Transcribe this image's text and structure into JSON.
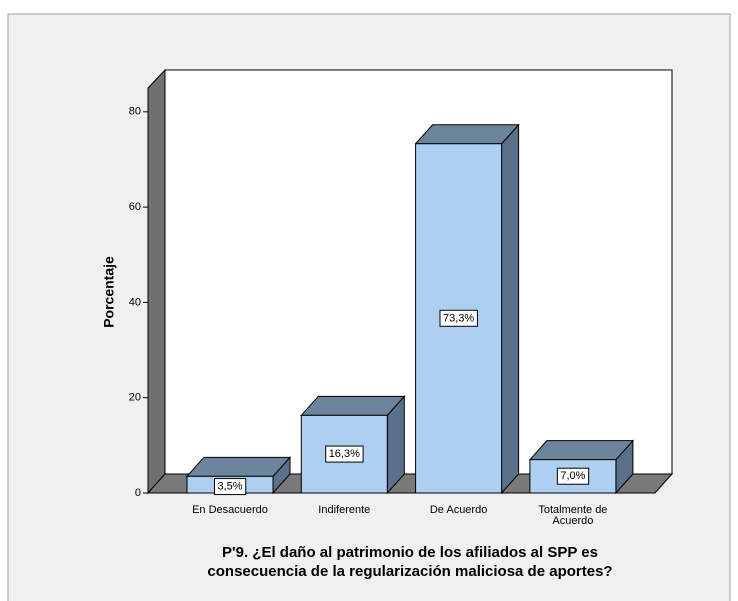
{
  "chart_data": {
    "type": "bar3d",
    "title": [
      "P'9. ¿El daño al patrimonio de los afiliados al SPP es",
      "consecuencia de la regularización maliciosa de aportes?"
    ],
    "ylabel": "Porcentaje",
    "categories": [
      "En Desacuerdo",
      "Indiferente",
      "De Acuerdo",
      "Totalmente de Acuerdo"
    ],
    "values": [
      3.5,
      16.3,
      73.3,
      7.0
    ],
    "value_labels": [
      "3,5%",
      "16,3%",
      "73,3%",
      "7,0%"
    ],
    "color": "#aed0f0",
    "ylim": [
      0,
      85
    ],
    "yticks": [
      0,
      20,
      40,
      60,
      80
    ]
  }
}
